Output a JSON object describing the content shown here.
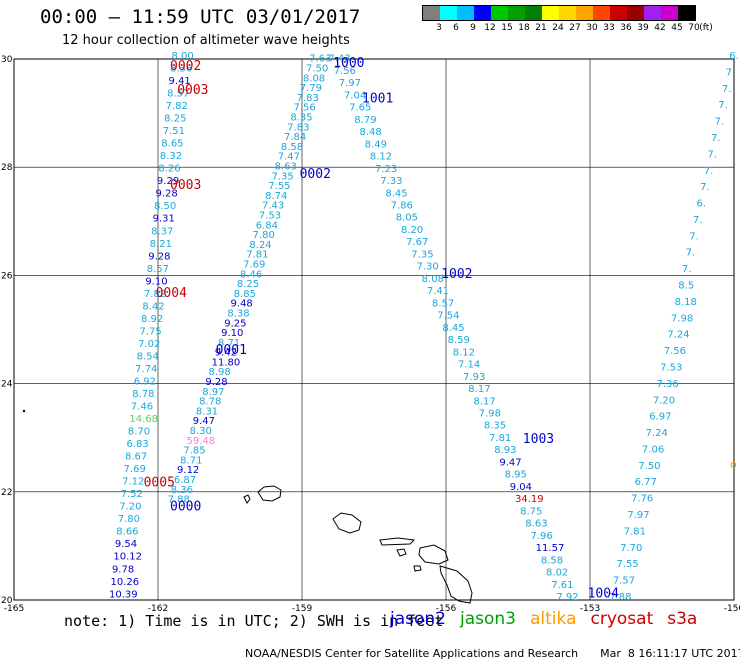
{
  "header": {
    "title": "00:00 – 11:59 UTC 03/01/2017",
    "subtitle": "12 hour collection of altimeter wave heights"
  },
  "legend": {
    "unit": "(ft)",
    "bins": [
      {
        "label": "3",
        "color": "#7f7f7f"
      },
      {
        "label": "6",
        "color": "#00ffff"
      },
      {
        "label": "9",
        "color": "#00bfff"
      },
      {
        "label": "12",
        "color": "#0000ff"
      },
      {
        "label": "15",
        "color": "#00c800"
      },
      {
        "label": "18",
        "color": "#00a000"
      },
      {
        "label": "21",
        "color": "#008000"
      },
      {
        "label": "24",
        "color": "#ffff00"
      },
      {
        "label": "27",
        "color": "#ffd700"
      },
      {
        "label": "30",
        "color": "#ffa500"
      },
      {
        "label": "33",
        "color": "#ff4500"
      },
      {
        "label": "36",
        "color": "#cc0000"
      },
      {
        "label": "39",
        "color": "#990000"
      },
      {
        "label": "42",
        "color": "#a020f0"
      },
      {
        "label": "45",
        "color": "#cc00cc"
      },
      {
        "label": "70",
        "color": "#000000"
      }
    ]
  },
  "axes": {
    "lon_ticks": [
      "-165",
      "-162",
      "-159",
      "-156",
      "-153",
      "-150"
    ],
    "lat_ticks": [
      "30",
      "28",
      "26",
      "24",
      "22",
      "20"
    ],
    "lon_range": [
      -165,
      -150
    ],
    "lat_range": [
      20,
      30
    ],
    "grid": true
  },
  "passes": [
    {
      "id": "0002",
      "sat": "cryosat",
      "lon": -161.75,
      "lat": 29.8
    },
    {
      "id": "0003",
      "sat": "cryosat",
      "lon": -161.6,
      "lat": 29.35
    },
    {
      "id": "0003",
      "sat": "cryosat",
      "lon": -161.75,
      "lat": 27.6
    },
    {
      "id": "0004",
      "sat": "cryosat",
      "lon": -162.05,
      "lat": 25.6
    },
    {
      "id": "0005",
      "sat": "cryosat",
      "lon": -162.3,
      "lat": 22.1
    },
    {
      "id": "0000",
      "sat": "jason2",
      "lon": -161.75,
      "lat": 21.65
    },
    {
      "id": "0001",
      "sat": "jason2",
      "lon": -160.8,
      "lat": 24.55
    },
    {
      "id": "0002",
      "sat": "jason2",
      "lon": -159.05,
      "lat": 27.8
    },
    {
      "id": "1000",
      "sat": "jason2",
      "lon": -158.35,
      "lat": 29.85
    },
    {
      "id": "1001",
      "sat": "jason2",
      "lon": -157.75,
      "lat": 29.2
    },
    {
      "id": "1002",
      "sat": "jason2",
      "lon": -156.1,
      "lat": 25.95
    },
    {
      "id": "1003",
      "sat": "jason2",
      "lon": -154.4,
      "lat": 22.9
    },
    {
      "id": "1004",
      "sat": "jason2",
      "lon": -153.05,
      "lat": 20.05
    }
  ],
  "tracks": [
    {
      "name": "cryosat-west-track",
      "lon_start": -161.72,
      "lat_start": 30.0,
      "lon_end": -163.02,
      "lat_end": 20.05,
      "values": [
        "8.00",
        "8.36",
        "9.41",
        "8.57",
        "7.82",
        "8.25",
        "7.51",
        "8.65",
        "8.32",
        "8.26",
        "9.29",
        "9.28",
        "8.50",
        "9.31",
        "8.37",
        "8.21",
        "9.28",
        "8.57",
        "9.10",
        "7.82",
        "8.42",
        "8.92",
        "7.75",
        "7.02",
        "8.54",
        "7.74",
        "6.92",
        "8.78",
        "7.46",
        "14.68",
        "8.70",
        "6.83",
        "8.67",
        "7.69",
        "7.12",
        "7.52",
        "7.20",
        "7.80",
        "8.66",
        "9.54",
        "10.12",
        "9.78",
        "10.26",
        "10.39"
      ]
    },
    {
      "name": "jason2-ascending-track",
      "lon_start": -161.8,
      "lat_start": 21.8,
      "lon_end": -158.85,
      "lat_end": 29.95,
      "values": [
        "7.88",
        "8.36",
        "6.87",
        "9.12",
        "8.71",
        "7.85",
        "59.48",
        "8.30",
        "9.47",
        "8.31",
        "8.78",
        "8.97",
        "9.28",
        "8.98",
        "11.80",
        "9.42",
        "8.71",
        "9.10",
        "9.25",
        "8.38",
        "9.48",
        "8.85",
        "8.25",
        "8.46",
        "7.69",
        "7.81",
        "8.24",
        "7.80",
        "6.84",
        "7.53",
        "7.43",
        "8.74",
        "7.55",
        "7.35",
        "8.63",
        "7.47",
        "8.58",
        "7.84",
        "7.83",
        "8.35",
        "7.56",
        "7.83",
        "7.79",
        "8.08",
        "7.50",
        "7.63"
      ]
    },
    {
      "name": "jason2-descending-track",
      "lon_start": -158.45,
      "lat_start": 29.95,
      "lon_end": -153.7,
      "lat_end": 20.0,
      "values": [
        "7.43",
        "7.56",
        "7.97",
        "7.04",
        "7.65",
        "8.79",
        "8.48",
        "8.49",
        "8.12",
        "7.23",
        "7.33",
        "8.45",
        "7.86",
        "8.05",
        "8.20",
        "7.67",
        "7.35",
        "7.30",
        "8.08",
        "7.41",
        "8.57",
        "7.54",
        "8.45",
        "8.59",
        "8.12",
        "7.14",
        "7.93",
        "8.17",
        "8.17",
        "7.98",
        "8.35",
        "7.81",
        "8.93",
        "9.47",
        "8.95",
        "9.04",
        "34.19",
        "8.75",
        "8.63",
        "7.96",
        "11.57",
        "8.58",
        "8.02",
        "7.61",
        "7.92"
      ]
    },
    {
      "name": "jason2-east-track",
      "lon_start": -150.1,
      "lat_start": 30.0,
      "lon_end": -152.6,
      "lat_end": 20.0,
      "values": [
        "6.",
        "7.",
        "7.",
        "7.",
        "7.",
        "7.",
        "7.",
        "7.",
        "7.",
        "6.",
        "7.",
        "7.",
        "7.",
        "7.",
        "8.5",
        "8.18",
        "7.98",
        "7.24",
        "7.56",
        "7.53",
        "7.36",
        "7.20",
        "6.97",
        "7.24",
        "7.06",
        "7.50",
        "6.77",
        "7.76",
        "7.97",
        "7.81",
        "7.70",
        "7.55",
        "7.57",
        "7.88"
      ]
    }
  ],
  "special_colors": {
    "14.68": "#5ad25a",
    "59.48": "#ff7fd0",
    "34.19": "#cc0000"
  },
  "footer": {
    "note": "note: 1) Time is in UTC; 2) SWH is in feet",
    "satellites": [
      {
        "name": "jason2",
        "color": "#0000cc"
      },
      {
        "name": "jason3",
        "color": "#00a000"
      },
      {
        "name": "altika",
        "color": "#ff9900"
      },
      {
        "name": "cryosat",
        "color": "#cc0000"
      },
      {
        "name": "s3a",
        "color": "#cc0000"
      }
    ],
    "credit": "NOAA/NESDIS Center for Satellite Applications and Research",
    "timestamp": "Mar  8 16:11:17 UTC 2017"
  }
}
